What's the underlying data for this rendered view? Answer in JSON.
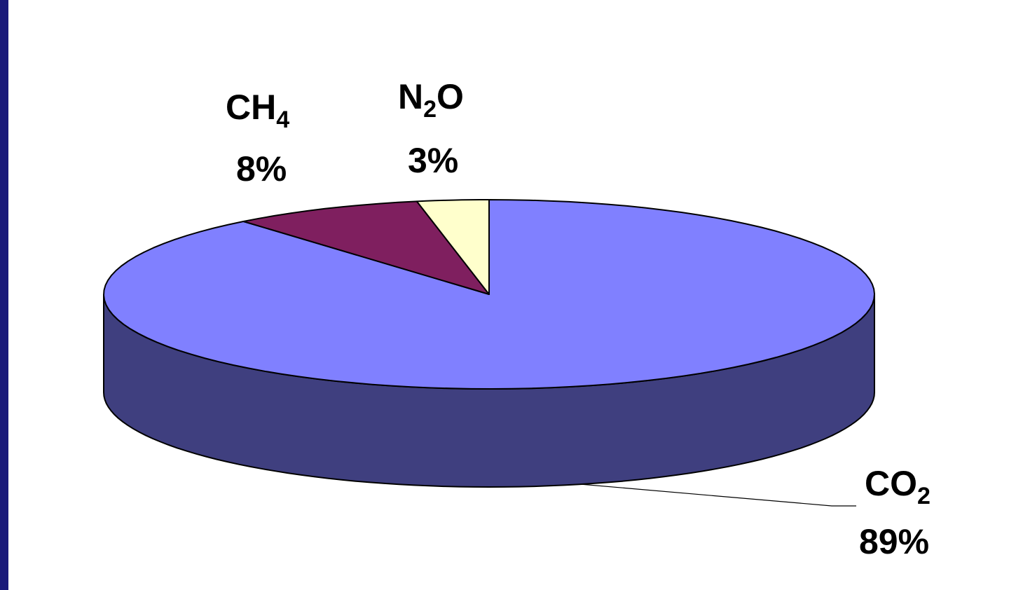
{
  "colors": {
    "frame": "#1a1a7a",
    "background": "#ffffff",
    "outline": "#000000",
    "side_shade": "#3f3f7f"
  },
  "chart_data": {
    "type": "pie",
    "style": "3d",
    "title": "",
    "slices": [
      {
        "formula": "CO",
        "subscript": "2",
        "percent_label": "89%",
        "value": 89,
        "color": "#8080ff"
      },
      {
        "formula": "CH",
        "subscript": "4",
        "percent_label": "8%",
        "value": 8,
        "color": "#7f1f5f"
      },
      {
        "formula": "N",
        "subscript": "2",
        "formula_suffix": "O",
        "percent_label": "3%",
        "value": 3,
        "color": "#ffffcc"
      }
    ]
  }
}
